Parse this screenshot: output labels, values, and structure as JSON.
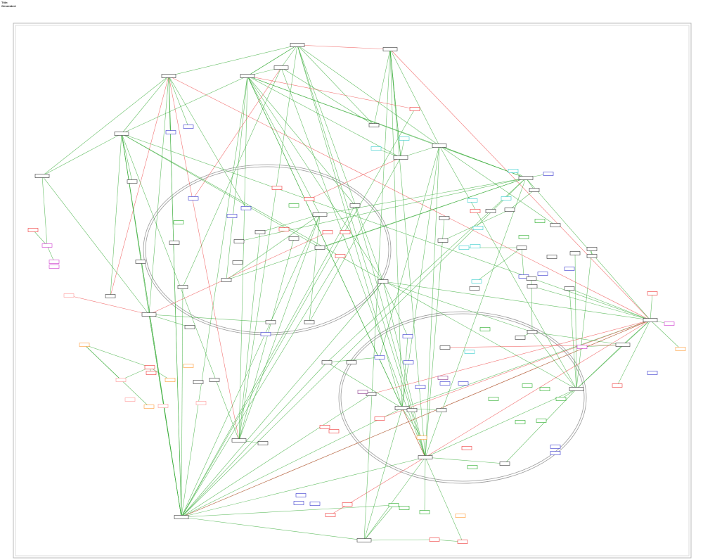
{
  "header": {
    "title_label": "Title:",
    "generated_label": "Generated:"
  }
}
